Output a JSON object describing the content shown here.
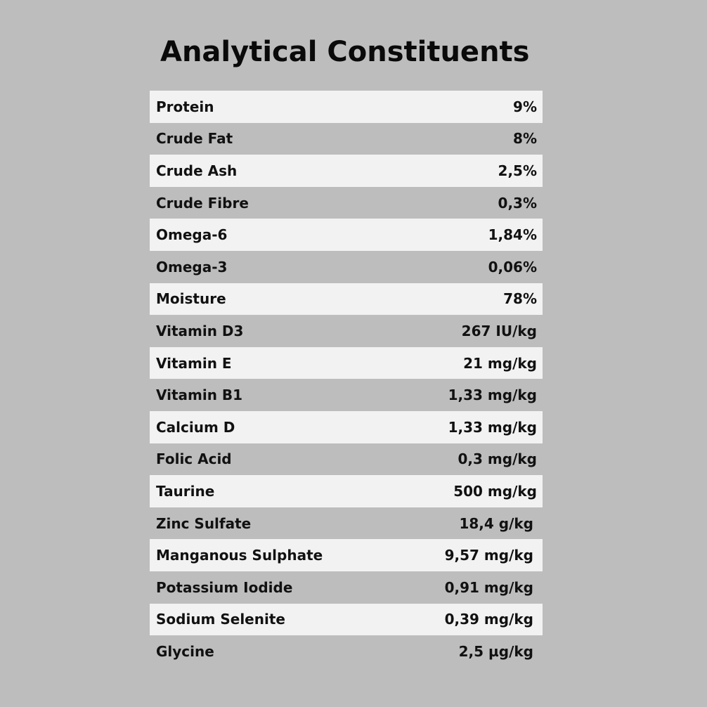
{
  "title": "Analytical Constituents",
  "rows": [
    {
      "label": "Protein",
      "value": "9%"
    },
    {
      "label": "Crude Fat",
      "value": "8%"
    },
    {
      "label": "Crude Ash",
      "value": "2,5%"
    },
    {
      "label": "Crude Fibre",
      "value": "0,3%"
    },
    {
      "label": "Omega-6",
      "value": "1,84%"
    },
    {
      "label": "Omega-3",
      "value": "0,06%"
    },
    {
      "label": "Moisture",
      "value": "78%"
    },
    {
      "label": "Vitamin D3",
      "value": "267 IU/kg"
    },
    {
      "label": "Vitamin E",
      "value": "21 mg/kg"
    },
    {
      "label": "Vitamin B1",
      "value": "1,33 mg/kg"
    },
    {
      "label": "Calcium D",
      "value": "1,33 mg/kg"
    },
    {
      "label": "Folic Acid",
      "value": "0,3 mg/kg"
    },
    {
      "label": "Taurine",
      "value": "500 mg/kg"
    },
    {
      "label": "Zinc Sulfate",
      "value": "18,4 g/kg"
    },
    {
      "label": "Manganous Sulphate",
      "value": "9,57 mg/kg"
    },
    {
      "label": "Potassium Iodide",
      "value": "0,91 mg/kg"
    },
    {
      "label": "Sodium Selenite",
      "value": "0,39 mg/kg"
    },
    {
      "label": "Glycine",
      "value": "2,5 µg/kg"
    }
  ],
  "colors": {
    "background": "#bdbdbd",
    "row_light": "#f2f2f2",
    "text": "#111111"
  }
}
